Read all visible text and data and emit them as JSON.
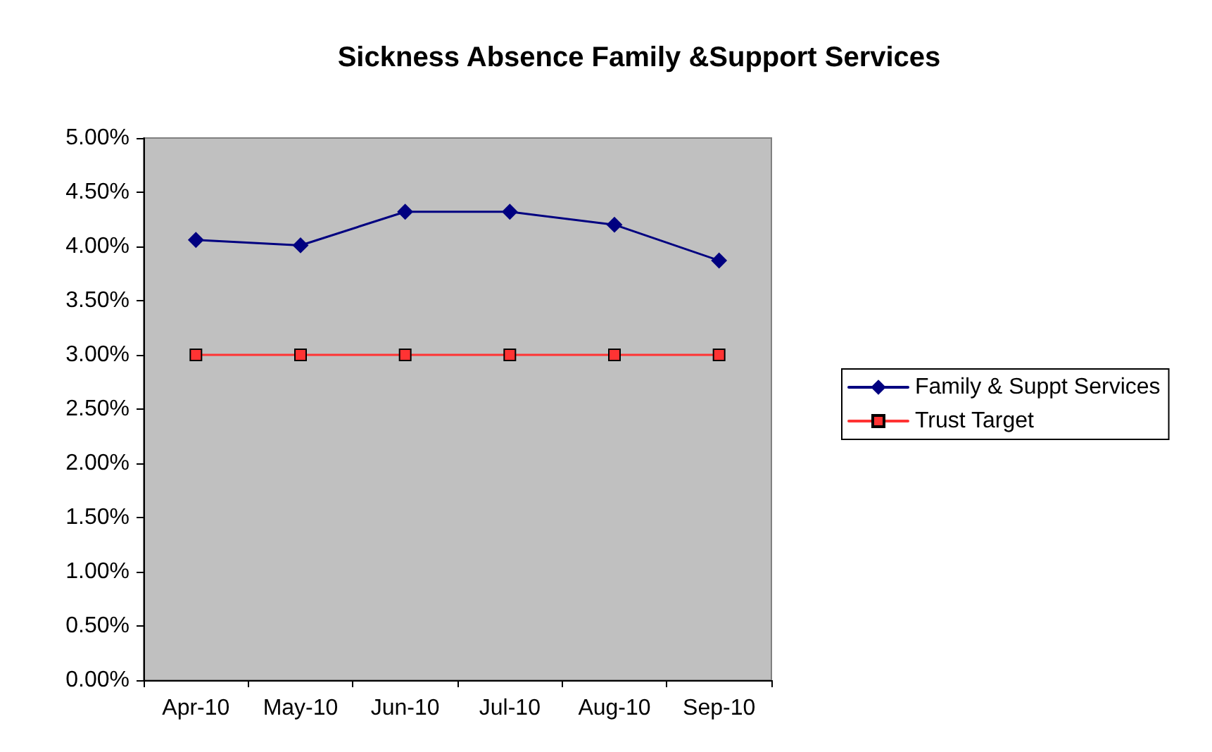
{
  "chart_data": {
    "type": "line",
    "title": "Sickness Absence Family &Support Services",
    "categories": [
      "Apr-10",
      "May-10",
      "Jun-10",
      "Jul-10",
      "Aug-10",
      "Sep-10"
    ],
    "series": [
      {
        "name": "Family & Suppt Services",
        "color": "#000080",
        "marker": "diamond",
        "values": [
          4.06,
          4.01,
          4.32,
          4.32,
          4.2,
          3.87
        ]
      },
      {
        "name": "Trust Target",
        "color": "#ff3333",
        "marker": "square",
        "values": [
          3.0,
          3.0,
          3.0,
          3.0,
          3.0,
          3.0
        ]
      }
    ],
    "ylim": [
      0,
      5
    ],
    "yticks": [
      {
        "value": 0,
        "label": "0.00%"
      },
      {
        "value": 0.5,
        "label": "0.50%"
      },
      {
        "value": 1,
        "label": "1.00%"
      },
      {
        "value": 1.5,
        "label": "1.50%"
      },
      {
        "value": 2,
        "label": "2.00%"
      },
      {
        "value": 2.5,
        "label": "2.50%"
      },
      {
        "value": 3,
        "label": "3.00%"
      },
      {
        "value": 3.5,
        "label": "3.50%"
      },
      {
        "value": 4,
        "label": "4.00%"
      },
      {
        "value": 4.5,
        "label": "4.50%"
      },
      {
        "value": 5,
        "label": "5.00%"
      }
    ],
    "grid": false,
    "legend": "right",
    "line_style": "solid"
  }
}
